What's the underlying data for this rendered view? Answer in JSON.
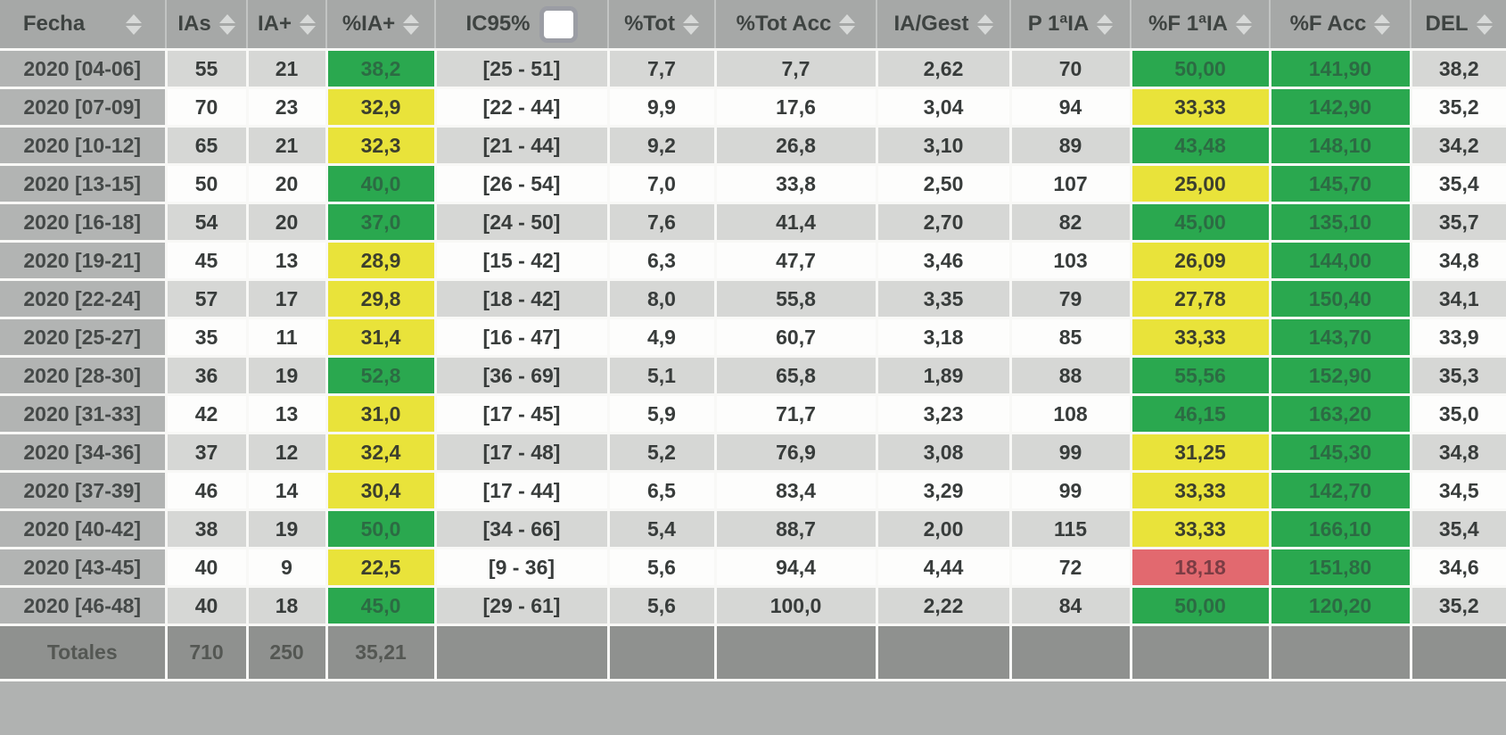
{
  "header": {
    "columns": [
      {
        "key": "fecha",
        "label": "Fecha",
        "sort": true
      },
      {
        "key": "ias",
        "label": "IAs",
        "sort": true
      },
      {
        "key": "ia-plus",
        "label": "IA+",
        "sort": true
      },
      {
        "key": "pct-ia-plus",
        "label": "%IA+",
        "sort": true
      },
      {
        "key": "ic95",
        "label": "IC95%",
        "sort": false,
        "checkbox": true,
        "checkbox_checked": false
      },
      {
        "key": "pct-tot",
        "label": "%Tot",
        "sort": true
      },
      {
        "key": "pct-tot-acc",
        "label": "%Tot Acc",
        "sort": true
      },
      {
        "key": "ia-gest",
        "label": "IA/Gest",
        "sort": true
      },
      {
        "key": "p-1ia",
        "label": "P 1ªIA",
        "sort": true
      },
      {
        "key": "pct-f-1ia",
        "label": "%F 1ªIA",
        "sort": true
      },
      {
        "key": "pct-f-acc",
        "label": "%F Acc",
        "sort": true
      },
      {
        "key": "del",
        "label": "DEL",
        "sort": true
      }
    ]
  },
  "rows": [
    {
      "label": "2020 [04-06]",
      "values": [
        "55",
        "21",
        "38,2",
        "[25 - 51]",
        "7,7",
        "7,7",
        "2,62",
        "70",
        "50,00",
        "141,90",
        "38,2"
      ],
      "colors": {
        "2": "green",
        "8": "green",
        "9": "green"
      }
    },
    {
      "label": "2020 [07-09]",
      "values": [
        "70",
        "23",
        "32,9",
        "[22 - 44]",
        "9,9",
        "17,6",
        "3,04",
        "94",
        "33,33",
        "142,90",
        "35,2"
      ],
      "colors": {
        "2": "yellow",
        "8": "yellow",
        "9": "green"
      }
    },
    {
      "label": "2020 [10-12]",
      "values": [
        "65",
        "21",
        "32,3",
        "[21 - 44]",
        "9,2",
        "26,8",
        "3,10",
        "89",
        "43,48",
        "148,10",
        "34,2"
      ],
      "colors": {
        "2": "yellow",
        "8": "green",
        "9": "green"
      }
    },
    {
      "label": "2020 [13-15]",
      "values": [
        "50",
        "20",
        "40,0",
        "[26 - 54]",
        "7,0",
        "33,8",
        "2,50",
        "107",
        "25,00",
        "145,70",
        "35,4"
      ],
      "colors": {
        "2": "green",
        "8": "yellow",
        "9": "green"
      }
    },
    {
      "label": "2020 [16-18]",
      "values": [
        "54",
        "20",
        "37,0",
        "[24 - 50]",
        "7,6",
        "41,4",
        "2,70",
        "82",
        "45,00",
        "135,10",
        "35,7"
      ],
      "colors": {
        "2": "green",
        "8": "green",
        "9": "green"
      }
    },
    {
      "label": "2020 [19-21]",
      "values": [
        "45",
        "13",
        "28,9",
        "[15 - 42]",
        "6,3",
        "47,7",
        "3,46",
        "103",
        "26,09",
        "144,00",
        "34,8"
      ],
      "colors": {
        "2": "yellow",
        "8": "yellow",
        "9": "green"
      }
    },
    {
      "label": "2020 [22-24]",
      "values": [
        "57",
        "17",
        "29,8",
        "[18 - 42]",
        "8,0",
        "55,8",
        "3,35",
        "79",
        "27,78",
        "150,40",
        "34,1"
      ],
      "colors": {
        "2": "yellow",
        "8": "yellow",
        "9": "green"
      }
    },
    {
      "label": "2020 [25-27]",
      "values": [
        "35",
        "11",
        "31,4",
        "[16 - 47]",
        "4,9",
        "60,7",
        "3,18",
        "85",
        "33,33",
        "143,70",
        "33,9"
      ],
      "colors": {
        "2": "yellow",
        "8": "yellow",
        "9": "green"
      }
    },
    {
      "label": "2020 [28-30]",
      "values": [
        "36",
        "19",
        "52,8",
        "[36 - 69]",
        "5,1",
        "65,8",
        "1,89",
        "88",
        "55,56",
        "152,90",
        "35,3"
      ],
      "colors": {
        "2": "green",
        "8": "green",
        "9": "green"
      }
    },
    {
      "label": "2020 [31-33]",
      "values": [
        "42",
        "13",
        "31,0",
        "[17 - 45]",
        "5,9",
        "71,7",
        "3,23",
        "108",
        "46,15",
        "163,20",
        "35,0"
      ],
      "colors": {
        "2": "yellow",
        "8": "green",
        "9": "green"
      }
    },
    {
      "label": "2020 [34-36]",
      "values": [
        "37",
        "12",
        "32,4",
        "[17 - 48]",
        "5,2",
        "76,9",
        "3,08",
        "99",
        "31,25",
        "145,30",
        "34,8"
      ],
      "colors": {
        "2": "yellow",
        "8": "yellow",
        "9": "green"
      }
    },
    {
      "label": "2020 [37-39]",
      "values": [
        "46",
        "14",
        "30,4",
        "[17 - 44]",
        "6,5",
        "83,4",
        "3,29",
        "99",
        "33,33",
        "142,70",
        "34,5"
      ],
      "colors": {
        "2": "yellow",
        "8": "yellow",
        "9": "green"
      }
    },
    {
      "label": "2020 [40-42]",
      "values": [
        "38",
        "19",
        "50,0",
        "[34 - 66]",
        "5,4",
        "88,7",
        "2,00",
        "115",
        "33,33",
        "166,10",
        "35,4"
      ],
      "colors": {
        "2": "green",
        "8": "yellow",
        "9": "green"
      }
    },
    {
      "label": "2020 [43-45]",
      "values": [
        "40",
        "9",
        "22,5",
        "[9 - 36]",
        "5,6",
        "94,4",
        "4,44",
        "72",
        "18,18",
        "151,80",
        "34,6"
      ],
      "colors": {
        "2": "yellow",
        "8": "red",
        "9": "green"
      }
    },
    {
      "label": "2020 [46-48]",
      "values": [
        "40",
        "18",
        "45,0",
        "[29 - 61]",
        "5,6",
        "100,0",
        "2,22",
        "84",
        "50,00",
        "120,20",
        "35,2"
      ],
      "colors": {
        "2": "green",
        "8": "green",
        "9": "green"
      }
    }
  ],
  "totals": {
    "label": "Totales",
    "values": [
      "710",
      "250",
      "35,21",
      "",
      "",
      "",
      "",
      "",
      "",
      "",
      ""
    ]
  },
  "colors": {
    "green": "#2aa84f",
    "yellow": "#e9e33a",
    "red": "#e2696f",
    "header_bg": "#a6a8a7",
    "label_column_bg": "#b2b4b3",
    "row_odd_bg": "#d6d7d5",
    "row_even_bg": "#fdfdfc",
    "totals_bg": "#8f918f"
  }
}
